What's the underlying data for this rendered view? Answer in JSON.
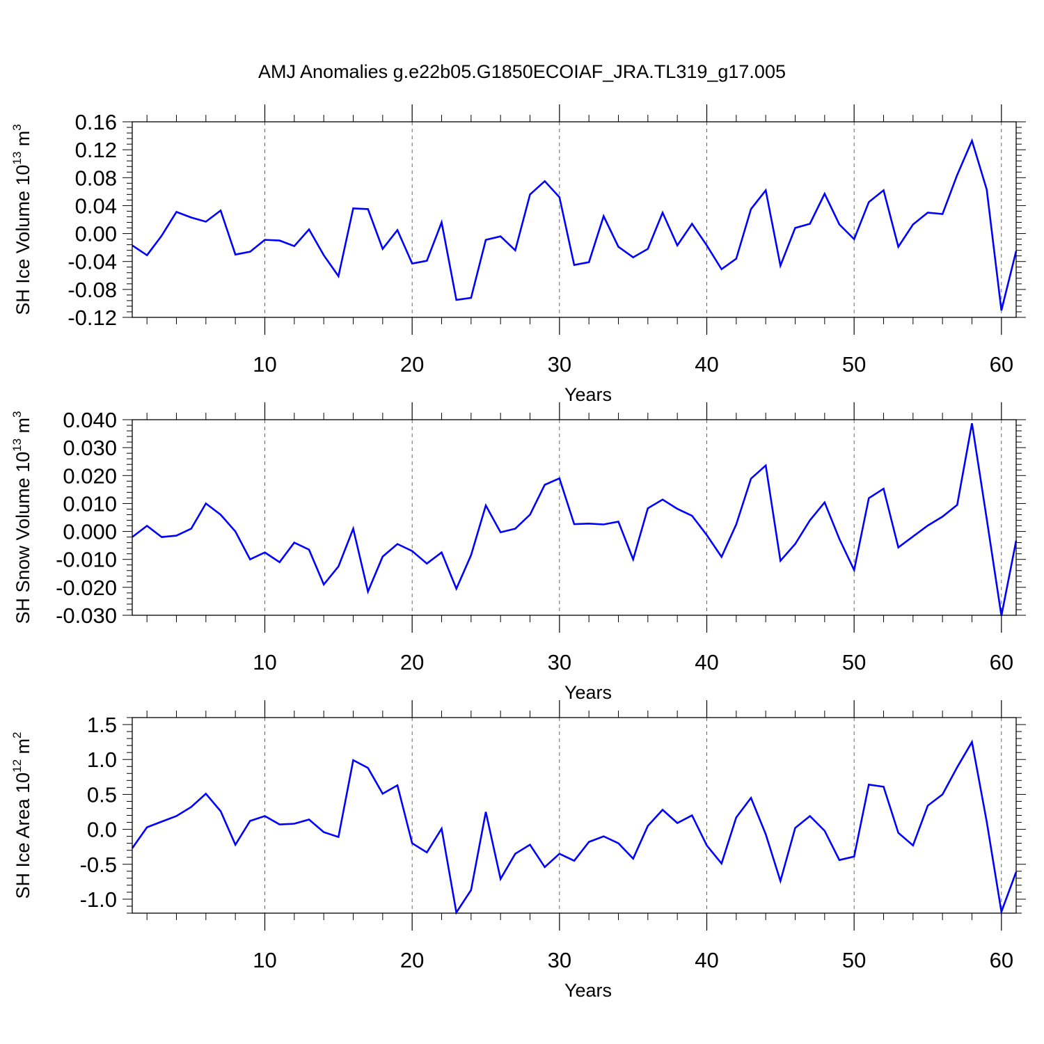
{
  "figure": {
    "title": "AMJ Anomalies g.e22b05.G1850ECOIAF_JRA.TL319_g17.005",
    "line_color": "#0000ff"
  },
  "chart_data": [
    {
      "type": "line",
      "title": "",
      "xlabel": "Years",
      "ylabel": "SH Ice Volume 10",
      "ylabel_exp": "13",
      "ylabel_unit": " m",
      "ylabel_unit_exp": "3",
      "xlim": [
        1,
        61
      ],
      "ylim": [
        -0.12,
        0.16
      ],
      "xticks": [
        10,
        20,
        30,
        40,
        50,
        60
      ],
      "xtick_labels": [
        "10",
        "20",
        "30",
        "40",
        "50",
        "60"
      ],
      "yticks": [
        -0.12,
        -0.08,
        -0.04,
        0.0,
        0.04,
        0.08,
        0.12,
        0.16
      ],
      "ytick_labels": [
        "-0.12",
        "-0.08",
        "-0.04",
        "0.00",
        "0.04",
        "0.08",
        "0.12",
        "0.16"
      ],
      "grid": "dashed vertical at major x ticks",
      "series": [
        {
          "x": [
            1,
            2,
            3,
            4,
            5,
            6,
            7,
            8,
            9,
            10,
            11,
            12,
            13,
            14,
            15,
            16,
            17,
            18,
            19,
            20,
            21,
            22,
            23,
            24,
            25,
            26,
            27,
            28,
            29,
            30,
            31,
            32,
            33,
            34,
            35,
            36,
            37,
            38,
            39,
            40,
            41,
            42,
            43,
            44,
            45,
            46,
            47,
            48,
            49,
            50,
            51,
            52,
            53,
            54,
            55,
            56,
            57,
            58,
            59,
            60,
            61
          ],
          "values": [
            -0.017,
            -0.031,
            -0.003,
            0.031,
            0.023,
            0.017,
            0.033,
            -0.03,
            -0.026,
            -0.009,
            -0.01,
            -0.018,
            0.006,
            -0.031,
            -0.061,
            0.036,
            0.035,
            -0.022,
            0.005,
            -0.043,
            -0.039,
            0.016,
            -0.095,
            -0.092,
            -0.009,
            -0.004,
            -0.024,
            0.056,
            0.075,
            0.052,
            -0.045,
            -0.041,
            0.025,
            -0.019,
            -0.034,
            -0.022,
            0.03,
            -0.017,
            0.014,
            -0.017,
            -0.051,
            -0.036,
            0.035,
            0.062,
            -0.046,
            0.008,
            0.014,
            0.057,
            0.013,
            -0.008,
            0.045,
            0.062,
            -0.019,
            0.013,
            0.03,
            0.028,
            0.084,
            0.133,
            0.063,
            -0.11,
            -0.025
          ]
        }
      ]
    },
    {
      "type": "line",
      "title": "",
      "xlabel": "Years",
      "ylabel": "SH Snow Volume 10",
      "ylabel_exp": "13",
      "ylabel_unit": " m",
      "ylabel_unit_exp": "3",
      "xlim": [
        1,
        61
      ],
      "ylim": [
        -0.03,
        0.04
      ],
      "xticks": [
        10,
        20,
        30,
        40,
        50,
        60
      ],
      "xtick_labels": [
        "10",
        "20",
        "30",
        "40",
        "50",
        "60"
      ],
      "yticks": [
        -0.03,
        -0.02,
        -0.01,
        0.0,
        0.01,
        0.02,
        0.03,
        0.04
      ],
      "ytick_labels": [
        "-0.030",
        "-0.020",
        "-0.010",
        "0.000",
        "0.010",
        "0.020",
        "0.030",
        "0.040"
      ],
      "grid": "dashed vertical at major x ticks",
      "series": [
        {
          "x": [
            1,
            2,
            3,
            4,
            5,
            6,
            7,
            8,
            9,
            10,
            11,
            12,
            13,
            14,
            15,
            16,
            17,
            18,
            19,
            20,
            21,
            22,
            23,
            24,
            25,
            26,
            27,
            28,
            29,
            30,
            31,
            32,
            33,
            34,
            35,
            36,
            37,
            38,
            39,
            40,
            41,
            42,
            43,
            44,
            45,
            46,
            47,
            48,
            49,
            50,
            51,
            52,
            53,
            54,
            55,
            56,
            57,
            58,
            59,
            60,
            61
          ],
          "values": [
            -0.002,
            0.002,
            -0.002,
            -0.0015,
            0.001,
            0.01,
            0.006,
            0.0,
            -0.01,
            -0.0075,
            -0.011,
            -0.004,
            -0.0065,
            -0.019,
            -0.0125,
            0.001,
            -0.0215,
            -0.009,
            -0.0045,
            -0.007,
            -0.0115,
            -0.0075,
            -0.0205,
            -0.0085,
            0.0093,
            -0.0003,
            0.001,
            0.006,
            0.0167,
            0.019,
            0.0026,
            0.0028,
            0.0025,
            0.0035,
            -0.01,
            0.0083,
            0.0114,
            0.0081,
            0.0056,
            -0.0013,
            -0.0091,
            0.0025,
            0.0189,
            0.0236,
            -0.0105,
            -0.0045,
            0.004,
            0.0104,
            -0.0027,
            -0.0138,
            0.0119,
            0.0153,
            -0.0057,
            -0.0018,
            0.0021,
            0.0053,
            0.0095,
            0.0387,
            0.0045,
            -0.0302,
            -0.0033
          ]
        }
      ]
    },
    {
      "type": "line",
      "title": "",
      "xlabel": "Years",
      "ylabel": "SH Ice Area 10",
      "ylabel_exp": "12",
      "ylabel_unit": " m",
      "ylabel_unit_exp": "2",
      "xlim": [
        1,
        61
      ],
      "ylim": [
        -1.2,
        1.6
      ],
      "xticks": [
        10,
        20,
        30,
        40,
        50,
        60
      ],
      "xtick_labels": [
        "10",
        "20",
        "30",
        "40",
        "50",
        "60"
      ],
      "yticks": [
        -1.0,
        -0.5,
        0.0,
        0.5,
        1.0,
        1.5
      ],
      "ytick_labels": [
        "-1.0",
        "-0.5",
        "0.0",
        "0.5",
        "1.0",
        "1.5"
      ],
      "grid": "dashed vertical at major x ticks",
      "series": [
        {
          "x": [
            1,
            2,
            3,
            4,
            5,
            6,
            7,
            8,
            9,
            10,
            11,
            12,
            13,
            14,
            15,
            16,
            17,
            18,
            19,
            20,
            21,
            22,
            23,
            24,
            25,
            26,
            27,
            28,
            29,
            30,
            31,
            32,
            33,
            34,
            35,
            36,
            37,
            38,
            39,
            40,
            41,
            42,
            43,
            44,
            45,
            46,
            47,
            48,
            49,
            50,
            51,
            52,
            53,
            54,
            55,
            56,
            57,
            58,
            59,
            60,
            61
          ],
          "values": [
            -0.27,
            0.03,
            0.11,
            0.19,
            0.32,
            0.51,
            0.26,
            -0.22,
            0.12,
            0.19,
            0.07,
            0.08,
            0.14,
            -0.04,
            -0.11,
            0.99,
            0.88,
            0.51,
            0.63,
            -0.2,
            -0.33,
            0.01,
            -1.19,
            -0.87,
            0.25,
            -0.71,
            -0.35,
            -0.22,
            -0.54,
            -0.35,
            -0.45,
            -0.18,
            -0.1,
            -0.2,
            -0.42,
            0.05,
            0.28,
            0.09,
            0.2,
            -0.23,
            -0.49,
            0.17,
            0.45,
            -0.07,
            -0.74,
            0.02,
            0.19,
            -0.02,
            -0.44,
            -0.39,
            0.64,
            0.61,
            -0.05,
            -0.23,
            0.34,
            0.5,
            0.89,
            1.25,
            0.11,
            -1.18,
            -0.61
          ]
        }
      ]
    }
  ]
}
